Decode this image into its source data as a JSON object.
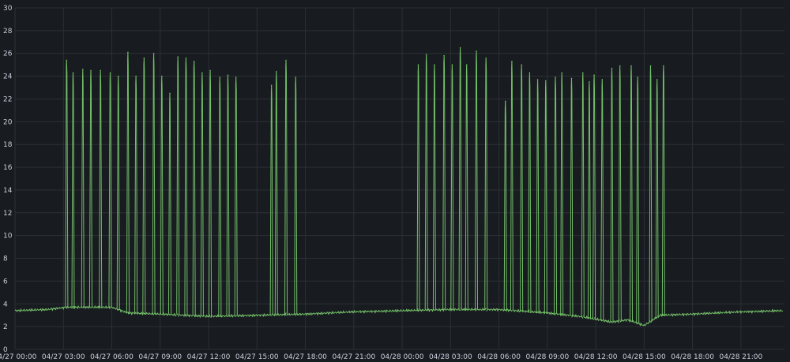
{
  "chart_data": {
    "type": "line",
    "title": "",
    "xlabel": "",
    "ylabel": "",
    "ylim": [
      0,
      30
    ],
    "yticks": [
      0,
      2,
      4,
      6,
      8,
      10,
      12,
      14,
      16,
      18,
      20,
      22,
      24,
      26,
      28,
      30
    ],
    "x_tick_labels": [
      "04/27 00:00",
      "04/27 03:00",
      "04/27 06:00",
      "04/27 09:00",
      "04/27 12:00",
      "04/27 15:00",
      "04/27 18:00",
      "04/27 21:00",
      "04/28 00:00",
      "04/28 03:00",
      "04/28 06:00",
      "04/28 09:00",
      "04/28 12:00",
      "04/28 15:00",
      "04/28 18:00",
      "04/28 21:00"
    ],
    "x_tick_hours": [
      0,
      3,
      6,
      9,
      12,
      15,
      18,
      21,
      24,
      27,
      30,
      33,
      36,
      39,
      42,
      45
    ],
    "xlim_hours": [
      0,
      47.7
    ],
    "grid": true,
    "legend": "none",
    "line_color": "#73bf69",
    "series": [
      {
        "baseline": [
          [
            0,
            3.4
          ],
          [
            2,
            3.5
          ],
          [
            3.2,
            3.7
          ],
          [
            6,
            3.7
          ],
          [
            7,
            3.2
          ],
          [
            9,
            3.1
          ],
          [
            12,
            2.9
          ],
          [
            15,
            3.0
          ],
          [
            18,
            3.1
          ],
          [
            21,
            3.3
          ],
          [
            24,
            3.4
          ],
          [
            27,
            3.5
          ],
          [
            30,
            3.5
          ],
          [
            31,
            3.4
          ],
          [
            33,
            3.2
          ],
          [
            35,
            2.9
          ],
          [
            37,
            2.4
          ],
          [
            38,
            2.6
          ],
          [
            39,
            2.1
          ],
          [
            40,
            3.0
          ],
          [
            42,
            3.1
          ],
          [
            45,
            3.3
          ],
          [
            47.6,
            3.4
          ]
        ],
        "spikes": [
          [
            3.2,
            25.4
          ],
          [
            3.6,
            24.3
          ],
          [
            4.2,
            24.6
          ],
          [
            4.7,
            24.5
          ],
          [
            5.3,
            24.5
          ],
          [
            5.9,
            24.3
          ],
          [
            6.4,
            24.0
          ],
          [
            7.0,
            26.1
          ],
          [
            7.5,
            24.0
          ],
          [
            8.0,
            25.6
          ],
          [
            8.6,
            26.0
          ],
          [
            9.1,
            24.0
          ],
          [
            9.6,
            22.5
          ],
          [
            10.1,
            25.7
          ],
          [
            10.6,
            25.6
          ],
          [
            11.1,
            25.3
          ],
          [
            11.6,
            24.3
          ],
          [
            12.1,
            24.5
          ],
          [
            12.7,
            23.9
          ],
          [
            13.2,
            24.1
          ],
          [
            13.7,
            23.9
          ],
          [
            15.9,
            23.2
          ],
          [
            16.2,
            24.4
          ],
          [
            16.8,
            25.4
          ],
          [
            17.4,
            23.9
          ],
          [
            25.0,
            25.0
          ],
          [
            25.5,
            25.9
          ],
          [
            26.0,
            25.0
          ],
          [
            26.6,
            25.8
          ],
          [
            27.1,
            25.0
          ],
          [
            27.6,
            26.5
          ],
          [
            28.0,
            25.0
          ],
          [
            28.6,
            26.2
          ],
          [
            29.2,
            25.6
          ],
          [
            30.4,
            21.8
          ],
          [
            30.8,
            25.3
          ],
          [
            31.4,
            25.0
          ],
          [
            31.9,
            24.3
          ],
          [
            32.4,
            23.7
          ],
          [
            32.9,
            23.6
          ],
          [
            33.5,
            23.9
          ],
          [
            33.9,
            24.3
          ],
          [
            34.5,
            23.8
          ],
          [
            35.2,
            24.3
          ],
          [
            35.6,
            23.5
          ],
          [
            35.9,
            24.1
          ],
          [
            36.4,
            23.7
          ],
          [
            37.0,
            24.7
          ],
          [
            37.5,
            24.9
          ],
          [
            38.2,
            24.9
          ],
          [
            38.6,
            23.9
          ],
          [
            39.4,
            24.9
          ],
          [
            39.8,
            23.7
          ],
          [
            40.2,
            24.9
          ]
        ]
      }
    ]
  }
}
